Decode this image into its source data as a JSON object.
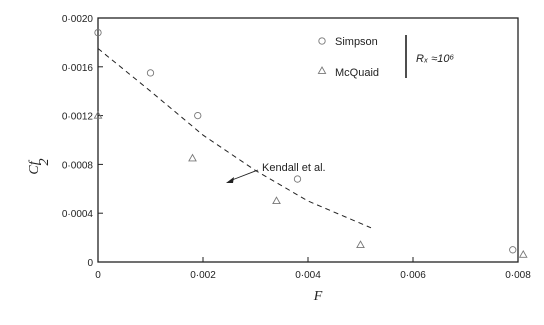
{
  "chart_data": {
    "type": "scatter",
    "xlabel": "F",
    "ylabel": "Cf",
    "ylabel_denominator": "2",
    "xlim": [
      0,
      0.008
    ],
    "ylim": [
      0,
      0.002
    ],
    "x_ticks": [
      "0",
      "0·002",
      "0·004",
      "0·006",
      "0·008"
    ],
    "y_ticks": [
      "0",
      "0·0004",
      "0·0008",
      "0·0012",
      "0·0016",
      "0·0020"
    ],
    "legend": {
      "position": "top-right",
      "entries": [
        "Simpson",
        "McQuaid"
      ],
      "group_label": "Rₓ ≈10⁶"
    },
    "series": [
      {
        "name": "Simpson",
        "marker": "circle",
        "points": [
          {
            "x": 0.0,
            "y": 0.00188
          },
          {
            "x": 0.001,
            "y": 0.00155
          },
          {
            "x": 0.0019,
            "y": 0.0012
          },
          {
            "x": 0.0038,
            "y": 0.00068
          },
          {
            "x": 0.0079,
            "y": 0.0001
          }
        ]
      },
      {
        "name": "McQuaid",
        "marker": "triangle",
        "points": [
          {
            "x": 0.0,
            "y": 0.0012
          },
          {
            "x": 0.0018,
            "y": 0.00085
          },
          {
            "x": 0.0034,
            "y": 0.0005
          },
          {
            "x": 0.005,
            "y": 0.00014
          },
          {
            "x": 0.0081,
            "y": 6e-05
          }
        ]
      },
      {
        "name": "Kendall et al.",
        "line": "dashed",
        "points": [
          {
            "x": 0.0,
            "y": 0.00175
          },
          {
            "x": 0.001,
            "y": 0.0014
          },
          {
            "x": 0.002,
            "y": 0.00104
          },
          {
            "x": 0.003,
            "y": 0.00075
          },
          {
            "x": 0.004,
            "y": 0.0005
          },
          {
            "x": 0.0052,
            "y": 0.00028
          }
        ]
      }
    ],
    "annotations": [
      {
        "text": "Kendall et al.",
        "x": 0.00235,
        "y": 0.00092
      }
    ]
  }
}
